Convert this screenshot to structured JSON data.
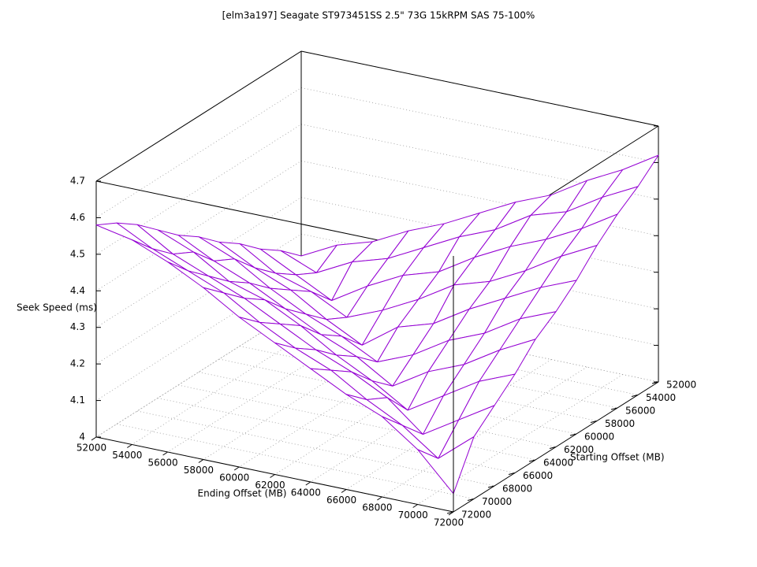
{
  "chart_data": {
    "type": "surface",
    "title": "[elm3a197] Seagate ST973451SS 2.5\" 73G 15kRPM SAS 75-100%",
    "xlabel": "Ending Offset (MB)",
    "ylabel": "Starting Offset (MB)",
    "zlabel": "Seek Speed (ms)",
    "x": [
      52000,
      54000,
      56000,
      58000,
      60000,
      62000,
      64000,
      66000,
      68000,
      70000,
      72000
    ],
    "y": [
      52000,
      54000,
      56000,
      58000,
      60000,
      62000,
      64000,
      66000,
      68000,
      70000,
      72000
    ],
    "z": [
      [
        4.14,
        4.19,
        4.22,
        4.27,
        4.31,
        4.36,
        4.41,
        4.45,
        4.51,
        4.56,
        4.62
      ],
      [
        4.19,
        4.15,
        4.2,
        4.23,
        4.28,
        4.33,
        4.37,
        4.43,
        4.46,
        4.52,
        4.57
      ],
      [
        4.23,
        4.18,
        4.13,
        4.19,
        4.24,
        4.27,
        4.33,
        4.38,
        4.42,
        4.47,
        4.53
      ],
      [
        4.28,
        4.22,
        4.19,
        4.14,
        4.18,
        4.23,
        4.29,
        4.32,
        4.37,
        4.43,
        4.48
      ],
      [
        4.32,
        4.27,
        4.23,
        4.17,
        4.12,
        4.19,
        4.22,
        4.28,
        4.33,
        4.38,
        4.42
      ],
      [
        4.37,
        4.33,
        4.27,
        4.22,
        4.18,
        4.13,
        4.17,
        4.23,
        4.27,
        4.33,
        4.37
      ],
      [
        4.41,
        4.36,
        4.32,
        4.27,
        4.22,
        4.18,
        4.12,
        4.18,
        4.22,
        4.28,
        4.33
      ],
      [
        4.46,
        4.42,
        4.36,
        4.33,
        4.28,
        4.22,
        4.17,
        4.11,
        4.17,
        4.23,
        4.27
      ],
      [
        4.51,
        4.45,
        4.41,
        4.37,
        4.32,
        4.27,
        4.23,
        4.18,
        4.1,
        4.16,
        4.22
      ],
      [
        4.55,
        4.5,
        4.46,
        4.42,
        4.36,
        4.31,
        4.27,
        4.21,
        4.16,
        4.09,
        4.17
      ],
      [
        4.58,
        4.56,
        4.52,
        4.47,
        4.41,
        4.36,
        4.31,
        4.26,
        4.22,
        4.15,
        4.05
      ]
    ],
    "xlim": [
      52000,
      72000
    ],
    "ylim": [
      52000,
      72000
    ],
    "zlim": [
      4,
      4.7
    ],
    "xticks": [
      52000,
      54000,
      56000,
      58000,
      60000,
      62000,
      64000,
      66000,
      68000,
      70000,
      72000
    ],
    "yticks": [
      52000,
      54000,
      56000,
      58000,
      60000,
      62000,
      64000,
      66000,
      68000,
      70000,
      72000
    ],
    "zticks": [
      4,
      4.1,
      4.2,
      4.3,
      4.4,
      4.5,
      4.6,
      4.7
    ],
    "color": "#9400d3",
    "grid": true
  }
}
